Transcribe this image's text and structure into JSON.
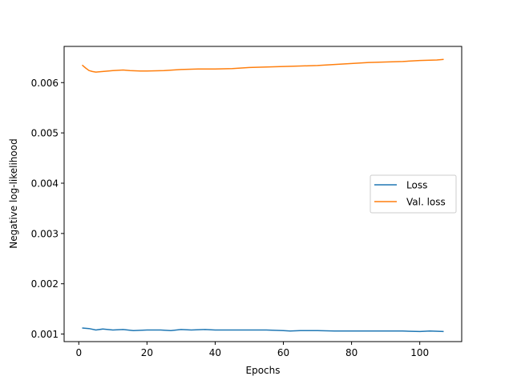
{
  "chart_data": {
    "type": "line",
    "title": "",
    "xlabel": "Epochs",
    "ylabel": "Negative log-likelihood",
    "xlim": [
      -4.3,
      112.3
    ],
    "ylim": [
      0.00085,
      0.00672
    ],
    "xticks": [
      0,
      20,
      40,
      60,
      80,
      100
    ],
    "yticks": [
      0.001,
      0.002,
      0.003,
      0.004,
      0.005,
      0.006
    ],
    "ytick_labels": [
      "0.001",
      "0.002",
      "0.003",
      "0.004",
      "0.005",
      "0.006"
    ],
    "grid": false,
    "legend_position": "center-right",
    "series": [
      {
        "name": "Loss",
        "color": "#1f77b4",
        "x": [
          1,
          3,
          5,
          7,
          10,
          13,
          16,
          20,
          24,
          27,
          30,
          33,
          37,
          40,
          45,
          50,
          55,
          60,
          62,
          65,
          70,
          75,
          80,
          85,
          90,
          95,
          100,
          103,
          107
        ],
        "y": [
          0.00112,
          0.00111,
          0.00108,
          0.0011,
          0.00108,
          0.00109,
          0.00107,
          0.00108,
          0.00108,
          0.00107,
          0.00109,
          0.00108,
          0.00109,
          0.00108,
          0.00108,
          0.00108,
          0.00108,
          0.00107,
          0.00106,
          0.00107,
          0.00107,
          0.00106,
          0.00106,
          0.00106,
          0.00106,
          0.00106,
          0.00105,
          0.00106,
          0.00105
        ]
      },
      {
        "name": "Val. loss",
        "color": "#ff7f0e",
        "x": [
          1,
          2,
          3,
          4,
          5,
          7,
          10,
          13,
          15,
          18,
          20,
          25,
          30,
          35,
          40,
          45,
          50,
          55,
          60,
          65,
          70,
          75,
          80,
          85,
          90,
          95,
          100,
          105,
          107
        ],
        "y": [
          0.00635,
          0.00629,
          0.00624,
          0.00622,
          0.00621,
          0.00622,
          0.00624,
          0.00625,
          0.00624,
          0.00623,
          0.00623,
          0.00624,
          0.00626,
          0.00627,
          0.00627,
          0.00628,
          0.0063,
          0.00631,
          0.00632,
          0.00633,
          0.00634,
          0.00636,
          0.00638,
          0.0064,
          0.00641,
          0.00642,
          0.00644,
          0.00645,
          0.00646
        ]
      }
    ]
  }
}
